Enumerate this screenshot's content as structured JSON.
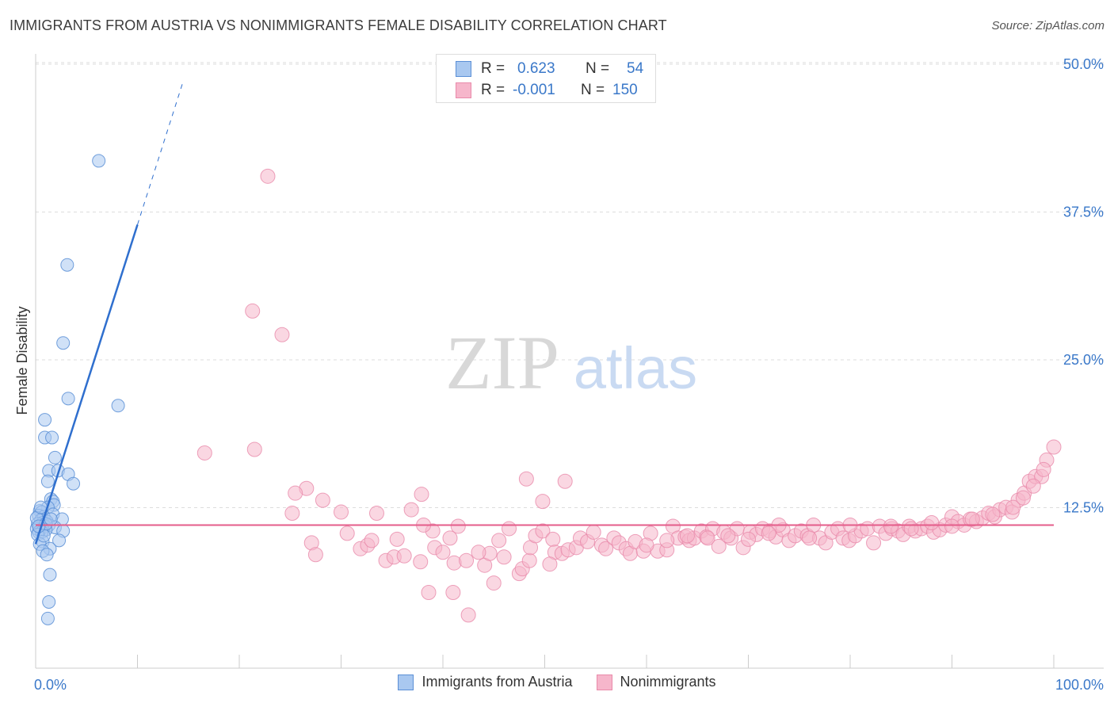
{
  "title": "IMMIGRANTS FROM AUSTRIA VS NONIMMIGRANTS FEMALE DISABILITY CORRELATION CHART",
  "source": "Source: ZipAtlas.com",
  "watermark": {
    "zip": "ZIP",
    "atlas": "atlas"
  },
  "stats": {
    "austria": {
      "r_label": "R =",
      "r_value": "0.623",
      "n_label": "N =",
      "n_value": "54"
    },
    "nonimmigrants": {
      "r_label": "R =",
      "r_value": "-0.001",
      "n_label": "N =",
      "n_value": "150"
    }
  },
  "legend": {
    "austria": "Immigrants from Austria",
    "nonimmigrants": "Nonimmigrants"
  },
  "colors": {
    "blue_fill": "#a9c8f0",
    "blue_stroke": "#5b8fd6",
    "blue_line": "#2f6fce",
    "pink_fill": "#f6b6cb",
    "pink_stroke": "#e98aaa",
    "pink_line": "#e45c8a",
    "grid": "#dddddd",
    "axis_text": "#3a78c9"
  },
  "chart_data": {
    "type": "scatter",
    "title": "IMMIGRANTS FROM AUSTRIA VS NONIMMIGRANTS FEMALE DISABILITY CORRELATION CHART",
    "xlabel": "",
    "ylabel": "Female Disability",
    "xlim": [
      0,
      100
    ],
    "ylim": [
      0,
      50
    ],
    "x_tick_labels": [
      "0.0%",
      "100.0%"
    ],
    "y_ticks": [
      12.5,
      25.0,
      37.5,
      50.0
    ],
    "y_tick_labels": [
      "12.5%",
      "25.0%",
      "37.5%",
      "50.0%"
    ],
    "series": [
      {
        "name": "Immigrants from Austria",
        "r": 0.623,
        "n": 54,
        "trend": {
          "x0": 0.0,
          "y0": 10.5,
          "x1": 10.0,
          "y1": 37.5,
          "dashed_to_x": 14.5
        },
        "points": [
          [
            6.2,
            42.9
          ],
          [
            3.1,
            34.1
          ],
          [
            2.7,
            27.5
          ],
          [
            3.2,
            22.8
          ],
          [
            8.1,
            22.2
          ],
          [
            0.9,
            21.0
          ],
          [
            0.9,
            19.5
          ],
          [
            1.6,
            19.5
          ],
          [
            1.9,
            17.8
          ],
          [
            1.3,
            16.7
          ],
          [
            2.2,
            16.7
          ],
          [
            3.2,
            16.4
          ],
          [
            1.2,
            15.8
          ],
          [
            3.7,
            15.6
          ],
          [
            1.5,
            14.3
          ],
          [
            1.7,
            14.1
          ],
          [
            1.8,
            13.8
          ],
          [
            1.2,
            13.6
          ],
          [
            0.4,
            13.3
          ],
          [
            0.6,
            13.2
          ],
          [
            1.7,
            13.0
          ],
          [
            0.3,
            12.9
          ],
          [
            0.8,
            12.8
          ],
          [
            2.6,
            12.6
          ],
          [
            0.5,
            12.5
          ],
          [
            1.1,
            12.4
          ],
          [
            0.7,
            12.3
          ],
          [
            0.2,
            12.2
          ],
          [
            1.3,
            12.1
          ],
          [
            0.9,
            12.0
          ],
          [
            0.4,
            11.9
          ],
          [
            1.9,
            11.9
          ],
          [
            0.6,
            11.8
          ],
          [
            0.1,
            11.8
          ],
          [
            1.0,
            11.7
          ],
          [
            2.7,
            11.6
          ],
          [
            0.3,
            11.5
          ],
          [
            0.6,
            11.5
          ],
          [
            0.2,
            11.3
          ],
          [
            2.3,
            10.8
          ],
          [
            0.7,
            10.7
          ],
          [
            0.4,
            10.5
          ],
          [
            1.4,
            10.1
          ],
          [
            0.7,
            9.9
          ],
          [
            1.1,
            9.6
          ],
          [
            1.4,
            7.9
          ],
          [
            1.3,
            5.6
          ],
          [
            1.2,
            4.2
          ],
          [
            0.1,
            12.7
          ],
          [
            0.5,
            13.6
          ],
          [
            1.0,
            12.2
          ],
          [
            0.8,
            11.2
          ],
          [
            1.5,
            12.6
          ],
          [
            0.3,
            12.0
          ]
        ]
      },
      {
        "name": "Nonimmigrants",
        "r": -0.001,
        "n": 150,
        "trend": {
          "x0": 0.0,
          "y0": 12.1,
          "x1": 100.0,
          "y1": 12.1
        },
        "points": [
          [
            22.8,
            41.6
          ],
          [
            21.3,
            30.2
          ],
          [
            24.2,
            28.2
          ],
          [
            16.6,
            18.2
          ],
          [
            21.5,
            18.5
          ],
          [
            26.6,
            15.2
          ],
          [
            25.5,
            14.8
          ],
          [
            28.2,
            14.2
          ],
          [
            37.9,
            14.7
          ],
          [
            33.5,
            13.1
          ],
          [
            39.0,
            11.6
          ],
          [
            36.9,
            13.4
          ],
          [
            41.5,
            12.0
          ],
          [
            48.2,
            16.0
          ],
          [
            49.8,
            14.1
          ],
          [
            52.0,
            15.8
          ],
          [
            27.1,
            10.6
          ],
          [
            25.2,
            13.1
          ],
          [
            30.6,
            11.4
          ],
          [
            31.9,
            10.1
          ],
          [
            32.6,
            10.4
          ],
          [
            34.4,
            9.1
          ],
          [
            35.2,
            9.4
          ],
          [
            35.5,
            10.9
          ],
          [
            36.2,
            9.5
          ],
          [
            37.8,
            9.0
          ],
          [
            38.1,
            12.1
          ],
          [
            39.2,
            10.2
          ],
          [
            40.0,
            9.8
          ],
          [
            40.7,
            11.0
          ],
          [
            41.1,
            8.9
          ],
          [
            42.3,
            9.1
          ],
          [
            44.1,
            8.7
          ],
          [
            44.6,
            9.7
          ],
          [
            45.5,
            10.8
          ],
          [
            46.0,
            9.4
          ],
          [
            47.5,
            8.0
          ],
          [
            47.8,
            8.4
          ],
          [
            48.5,
            9.1
          ],
          [
            48.6,
            10.2
          ],
          [
            49.1,
            11.2
          ],
          [
            49.8,
            11.6
          ],
          [
            50.8,
            10.9
          ],
          [
            51.0,
            9.8
          ],
          [
            51.7,
            9.7
          ],
          [
            52.3,
            10.0
          ],
          [
            53.1,
            10.2
          ],
          [
            53.5,
            11.0
          ],
          [
            54.2,
            10.7
          ],
          [
            54.8,
            11.5
          ],
          [
            55.6,
            10.4
          ],
          [
            56.0,
            10.1
          ],
          [
            56.8,
            11.0
          ],
          [
            57.3,
            10.6
          ],
          [
            58.0,
            10.1
          ],
          [
            58.4,
            9.7
          ],
          [
            58.9,
            10.7
          ],
          [
            59.7,
            9.9
          ],
          [
            60.4,
            11.4
          ],
          [
            61.1,
            9.9
          ],
          [
            62.0,
            10.0
          ],
          [
            62.6,
            12.0
          ],
          [
            63.1,
            11.0
          ],
          [
            63.8,
            11.1
          ],
          [
            64.2,
            10.8
          ],
          [
            64.7,
            11.0
          ],
          [
            65.4,
            11.6
          ],
          [
            65.9,
            11.1
          ],
          [
            66.5,
            11.8
          ],
          [
            67.1,
            10.3
          ],
          [
            67.6,
            11.5
          ],
          [
            68.3,
            11.0
          ],
          [
            68.9,
            11.8
          ],
          [
            69.5,
            10.2
          ],
          [
            70.2,
            11.5
          ],
          [
            70.8,
            11.3
          ],
          [
            71.4,
            11.8
          ],
          [
            72.1,
            11.6
          ],
          [
            72.7,
            11.1
          ],
          [
            73.4,
            11.7
          ],
          [
            74.0,
            10.8
          ],
          [
            74.6,
            11.2
          ],
          [
            75.2,
            11.6
          ],
          [
            75.8,
            11.2
          ],
          [
            76.4,
            12.1
          ],
          [
            77.0,
            11.0
          ],
          [
            77.6,
            10.6
          ],
          [
            78.2,
            11.5
          ],
          [
            78.8,
            11.8
          ],
          [
            79.3,
            11.0
          ],
          [
            79.9,
            10.8
          ],
          [
            80.5,
            11.2
          ],
          [
            81.1,
            11.6
          ],
          [
            81.7,
            11.8
          ],
          [
            82.3,
            10.6
          ],
          [
            82.9,
            12.0
          ],
          [
            83.5,
            11.4
          ],
          [
            84.1,
            11.8
          ],
          [
            84.7,
            11.6
          ],
          [
            85.2,
            11.3
          ],
          [
            85.8,
            12.0
          ],
          [
            86.4,
            11.6
          ],
          [
            87.0,
            11.8
          ],
          [
            87.6,
            12.0
          ],
          [
            88.2,
            11.5
          ],
          [
            88.8,
            11.7
          ],
          [
            89.4,
            12.1
          ],
          [
            90.0,
            12.8
          ],
          [
            90.6,
            12.4
          ],
          [
            91.2,
            12.1
          ],
          [
            91.8,
            12.6
          ],
          [
            92.4,
            12.4
          ],
          [
            93.0,
            12.7
          ],
          [
            93.6,
            13.1
          ],
          [
            94.2,
            12.8
          ],
          [
            94.7,
            13.4
          ],
          [
            95.3,
            13.6
          ],
          [
            95.9,
            13.2
          ],
          [
            96.5,
            14.2
          ],
          [
            97.1,
            14.8
          ],
          [
            97.6,
            15.8
          ],
          [
            98.2,
            16.2
          ],
          [
            98.8,
            16.2
          ],
          [
            99.3,
            17.6
          ],
          [
            100.0,
            18.7
          ],
          [
            73.0,
            12.1
          ],
          [
            76.0,
            11.0
          ],
          [
            80.0,
            12.1
          ],
          [
            84.0,
            12.0
          ],
          [
            86.0,
            11.8
          ],
          [
            88.0,
            12.3
          ],
          [
            90.0,
            12.0
          ],
          [
            92.0,
            12.6
          ],
          [
            94.0,
            13.0
          ],
          [
            96.0,
            13.6
          ],
          [
            97.0,
            14.4
          ],
          [
            98.0,
            15.4
          ],
          [
            99.0,
            16.8
          ],
          [
            60.0,
            10.4
          ],
          [
            62.0,
            10.8
          ],
          [
            64.0,
            11.2
          ],
          [
            66.0,
            11.0
          ],
          [
            68.0,
            11.2
          ],
          [
            70.0,
            10.9
          ],
          [
            72.0,
            11.4
          ],
          [
            43.5,
            9.8
          ],
          [
            45.0,
            7.2
          ],
          [
            41.0,
            6.4
          ],
          [
            46.5,
            11.8
          ],
          [
            30.0,
            13.2
          ],
          [
            27.5,
            9.6
          ],
          [
            33.0,
            10.8
          ],
          [
            38.6,
            6.4
          ],
          [
            42.5,
            4.5
          ],
          [
            50.5,
            8.8
          ]
        ]
      }
    ]
  }
}
